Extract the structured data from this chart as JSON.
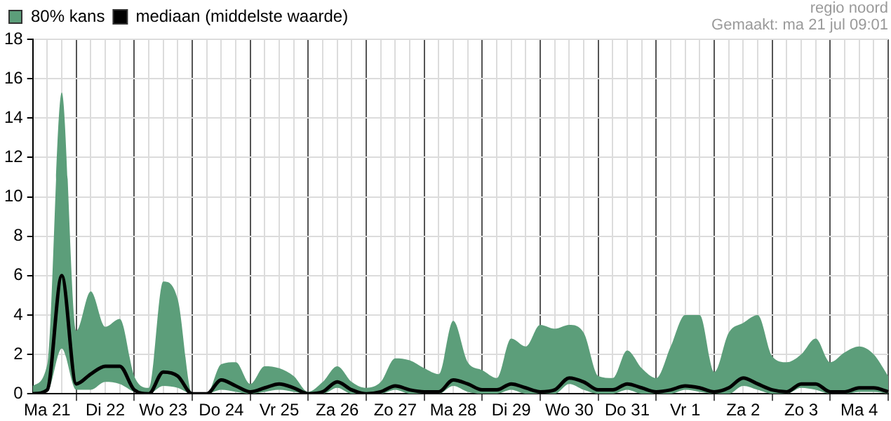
{
  "chart_data": {
    "type": "line",
    "annotations": [
      "80% kans",
      "regio noord",
      "Gemaakt: ma 21 jul 09:01"
    ],
    "categories": [
      null,
      "Ma 21",
      null,
      null,
      null,
      "Di 22",
      null,
      null,
      null,
      "Wo 23",
      null,
      null,
      null,
      "Do 24",
      null,
      null,
      null,
      "Vr 25",
      null,
      null,
      null,
      "Za 26",
      null,
      null,
      null,
      "Zo 27",
      null,
      null,
      null,
      "Ma 28",
      null,
      null,
      null,
      "Di 29",
      null,
      null,
      null,
      "Wo 30",
      null,
      null,
      null,
      "Do 31",
      null,
      null,
      null,
      "Vr 1",
      null,
      null,
      null,
      "Za 2",
      null,
      null,
      null,
      "Zo 3",
      null,
      null,
      null,
      "Ma 4",
      null,
      null
    ],
    "series": [
      {
        "name": "mediaan (middelste waarde)",
        "color": "#000000",
        "values": [
          0,
          0.2,
          6.0,
          0.5,
          1.0,
          1.4,
          1.4,
          0.2,
          0,
          1.1,
          0.9,
          0,
          0,
          0.7,
          0.4,
          0.1,
          0.3,
          0.5,
          0.3,
          0,
          0.1,
          0.6,
          0.2,
          0,
          0.1,
          0.4,
          0.2,
          0.1,
          0.1,
          0.7,
          0.5,
          0.2,
          0.2,
          0.5,
          0.3,
          0.1,
          0.2,
          0.8,
          0.6,
          0.2,
          0.2,
          0.5,
          0.3,
          0.1,
          0.2,
          0.4,
          0.3,
          0.1,
          0.3,
          0.8,
          0.5,
          0.2,
          0.1,
          0.5,
          0.5,
          0.1,
          0.1,
          0.3,
          0.3,
          0.1
        ],
        "upper": [
          0.4,
          1.5,
          15.3,
          3.2,
          5.2,
          3.4,
          3.8,
          0.9,
          0.3,
          5.7,
          4.8,
          0,
          0,
          1.5,
          1.6,
          0.5,
          1.4,
          1.3,
          0.9,
          0.1,
          0.6,
          1.4,
          0.6,
          0.3,
          0.6,
          1.8,
          1.7,
          1.3,
          1.0,
          3.7,
          1.6,
          1.2,
          0.8,
          2.8,
          2.4,
          3.5,
          3.3,
          3.5,
          3.1,
          0.9,
          0.8,
          2.2,
          1.3,
          0.8,
          2.4,
          4.0,
          4.0,
          1.1,
          3.1,
          3.6,
          4.0,
          1.9,
          1.6,
          2.0,
          2.8,
          1.6,
          2.1,
          2.4,
          2.0,
          0.9
        ],
        "lower": [
          0,
          0.1,
          2.3,
          0.2,
          0.2,
          0.6,
          0.5,
          0.1,
          0,
          0.4,
          0.3,
          0,
          0,
          0.2,
          0.1,
          0,
          0.1,
          0.2,
          0.1,
          0,
          0,
          0.3,
          0,
          0,
          0,
          0.2,
          0,
          0,
          0,
          0.4,
          0.1,
          0,
          0,
          0.2,
          0,
          0,
          0,
          0.5,
          0.2,
          0,
          0,
          0.2,
          0,
          0,
          0,
          0.2,
          0.1,
          0,
          0,
          0.4,
          0.2,
          0,
          0,
          0.3,
          0.2,
          0,
          0,
          0.1,
          0.1,
          0
        ]
      }
    ],
    "ylim": [
      0,
      18
    ],
    "yticks": [
      0,
      2,
      4,
      6,
      8,
      10,
      12,
      14,
      16,
      18
    ],
    "grid": true,
    "legend": "top left",
    "marker": "none",
    "line_style": "solid"
  }
}
